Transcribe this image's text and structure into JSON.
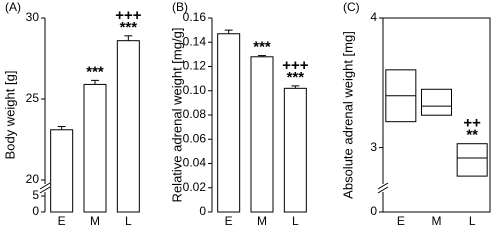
{
  "chart_data": [
    {
      "type": "bar",
      "panel_label": "(A)",
      "ylabel": "Body weight [g]",
      "categories": [
        "E",
        "M",
        "L"
      ],
      "values": [
        23.1,
        25.9,
        28.6
      ],
      "errors": [
        0.2,
        0.25,
        0.3
      ],
      "color": "#ffffff",
      "ylim": [
        0,
        30
      ],
      "axis_break": [
        5,
        20
      ],
      "yticks": [
        0,
        5,
        20,
        25,
        30
      ],
      "annotations": [
        {
          "category": "M",
          "text": "***"
        },
        {
          "category": "L",
          "text": "***"
        },
        {
          "category": "L",
          "text": "+++"
        }
      ]
    },
    {
      "type": "bar",
      "panel_label": "(B)",
      "ylabel": "Relative adrenal weight [mg/g]",
      "categories": [
        "E",
        "M",
        "L"
      ],
      "values": [
        0.147,
        0.128,
        0.102
      ],
      "errors": [
        0.003,
        0.001,
        0.002
      ],
      "color": "#ffffff",
      "ylim": [
        0,
        0.16
      ],
      "yticks": [
        0,
        0.02,
        0.04,
        0.06,
        0.08,
        {
          "value": 0.1,
          "label": "0.10"
        },
        0.12,
        0.14,
        0.16
      ],
      "annotations": [
        {
          "category": "M",
          "text": "***"
        },
        {
          "category": "L",
          "text": "***"
        },
        {
          "category": "L",
          "text": "+++"
        }
      ]
    },
    {
      "type": "box",
      "panel_label": "(C)",
      "ylabel": "Absolute adrenal weight [mg]",
      "categories": [
        "E",
        "M",
        "L"
      ],
      "q1": [
        3.2,
        3.25,
        2.78
      ],
      "median": [
        3.4,
        3.32,
        2.92
      ],
      "q3": [
        3.6,
        3.45,
        3.03
      ],
      "color": "#ffffff",
      "ylim": [
        0,
        4
      ],
      "axis_break": [
        0.2,
        2.75
      ],
      "yticks": [
        0,
        3,
        4
      ],
      "frame": true,
      "annotations": [
        {
          "category": "L",
          "text": "**"
        },
        {
          "category": "L",
          "text": "++"
        }
      ]
    }
  ]
}
